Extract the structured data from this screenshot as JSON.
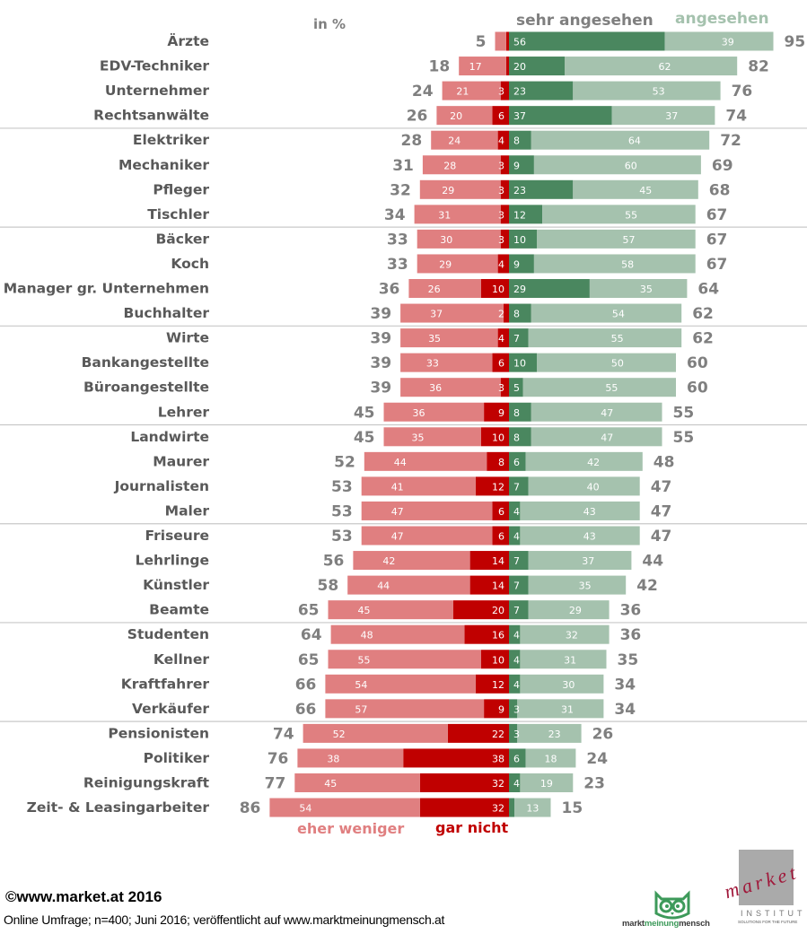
{
  "chart_data": {
    "type": "bar",
    "subtype": "diverging-stacked-horizontal",
    "unit_label": "in %",
    "legend": {
      "sehr_angesehen": "sehr angesehen",
      "angesehen": "angesehen",
      "eher_weniger": "eher weniger",
      "gar_nicht": "gar nicht"
    },
    "colors": {
      "sehr_angesehen": "#4a875f",
      "angesehen": "#a5c2ae",
      "eher_weniger": "#e07f80",
      "gar_nicht": "#c00000",
      "label_text": "#595959",
      "total_text": "#7f7f7f"
    },
    "group_size": 4,
    "categories": [
      "Ärzte",
      "EDV-Techniker",
      "Unternehmer",
      "Rechtsanwälte",
      "Elektriker",
      "Mechaniker",
      "Pfleger",
      "Tischler",
      "Bäcker",
      "Koch",
      "Manager gr. Unternehmen",
      "Buchhalter",
      "Wirte",
      "Bankangestellte",
      "Büroangestellte",
      "Lehrer",
      "Landwirte",
      "Maurer",
      "Journalisten",
      "Maler",
      "Friseure",
      "Lehrlinge",
      "Künstler",
      "Beamte",
      "Studenten",
      "Kellner",
      "Kraftfahrer",
      "Verkäufer",
      "Pensionisten",
      "Politiker",
      "Reinigungskraft",
      "Zeit- & Leasingarbeiter"
    ],
    "series": [
      {
        "name": "eher weniger",
        "key": "eher_weniger",
        "values": [
          4,
          17,
          21,
          20,
          24,
          28,
          29,
          31,
          30,
          29,
          26,
          37,
          35,
          33,
          36,
          36,
          35,
          44,
          41,
          47,
          47,
          42,
          44,
          45,
          48,
          55,
          54,
          57,
          52,
          38,
          45,
          54
        ],
        "labels": [
          "",
          "17",
          "21",
          "20",
          "24",
          "28",
          "29",
          "31",
          "30",
          "29",
          "26",
          "37",
          "35",
          "33",
          "36",
          "36",
          "35",
          "44",
          "41",
          "47",
          "47",
          "42",
          "44",
          "45",
          "48",
          "55",
          "54",
          "57",
          "52",
          "38",
          "45",
          "54"
        ]
      },
      {
        "name": "gar nicht",
        "key": "gar_nicht",
        "values": [
          1,
          1,
          3,
          6,
          4,
          3,
          3,
          3,
          3,
          4,
          10,
          2,
          4,
          6,
          3,
          9,
          10,
          8,
          12,
          6,
          6,
          14,
          14,
          20,
          16,
          10,
          12,
          9,
          22,
          38,
          32,
          32
        ],
        "labels": [
          "",
          "",
          "3",
          "6",
          "4",
          "3",
          "3",
          "3",
          "3",
          "4",
          "10",
          "2",
          "4",
          "6",
          "3",
          "9",
          "10",
          "8",
          "12",
          "6",
          "6",
          "14",
          "14",
          "20",
          "16",
          "10",
          "12",
          "9",
          "22",
          "38",
          "32",
          "32"
        ]
      },
      {
        "name": "sehr angesehen",
        "key": "sehr_angesehen",
        "values": [
          56,
          20,
          23,
          37,
          8,
          9,
          23,
          12,
          10,
          9,
          29,
          8,
          7,
          10,
          5,
          8,
          8,
          6,
          7,
          4,
          4,
          7,
          7,
          7,
          4,
          4,
          4,
          3,
          3,
          6,
          4,
          2
        ],
        "labels": [
          "56",
          "20",
          "23",
          "37",
          "8",
          "9",
          "23",
          "12",
          "10",
          "9",
          "29",
          "8",
          "7",
          "10",
          "5",
          "8",
          "8",
          "6",
          "7",
          "4",
          "4",
          "7",
          "7",
          "7",
          "4",
          "4",
          "4",
          "3",
          "3",
          "6",
          "4",
          ""
        ]
      },
      {
        "name": "angesehen",
        "key": "angesehen",
        "values": [
          39,
          62,
          53,
          37,
          64,
          60,
          45,
          55,
          57,
          58,
          35,
          54,
          55,
          50,
          55,
          47,
          47,
          42,
          40,
          43,
          43,
          37,
          35,
          29,
          32,
          31,
          30,
          31,
          23,
          18,
          19,
          13
        ],
        "labels": [
          "39",
          "62",
          "53",
          "37",
          "64",
          "60",
          "45",
          "55",
          "57",
          "58",
          "35",
          "54",
          "55",
          "50",
          "55",
          "47",
          "47",
          "42",
          "40",
          "43",
          "43",
          "37",
          "35",
          "29",
          "32",
          "31",
          "30",
          "31",
          "23",
          "18",
          "19",
          "13"
        ]
      }
    ],
    "totals_negative": [
      5,
      18,
      24,
      26,
      28,
      31,
      32,
      34,
      33,
      33,
      36,
      39,
      39,
      39,
      39,
      45,
      45,
      52,
      53,
      53,
      53,
      56,
      58,
      65,
      64,
      65,
      66,
      66,
      74,
      76,
      77,
      86
    ],
    "totals_positive": [
      95,
      82,
      76,
      74,
      72,
      69,
      68,
      67,
      67,
      67,
      64,
      62,
      62,
      60,
      60,
      55,
      55,
      48,
      47,
      47,
      47,
      44,
      42,
      36,
      36,
      35,
      34,
      34,
      26,
      24,
      23,
      15
    ],
    "title": "",
    "xlabel": "",
    "ylabel": "",
    "xlim": [
      -100,
      100
    ],
    "grid": false,
    "legend_placement": "top-right and bottom-center"
  },
  "footer": {
    "copyright": "©www.market.at 2016",
    "note": "Online Umfrage; n=400; Juni 2016; veröffentlicht auf www.marktmeinungmensch.at"
  },
  "logos": {
    "mmm": {
      "part1": "markt",
      "part2": "meinung",
      "part3": "mensch"
    },
    "market": {
      "word": "market",
      "institut": "INSTITUT",
      "slogan": "SOLUTIONS FOR THE FUTURE"
    }
  }
}
